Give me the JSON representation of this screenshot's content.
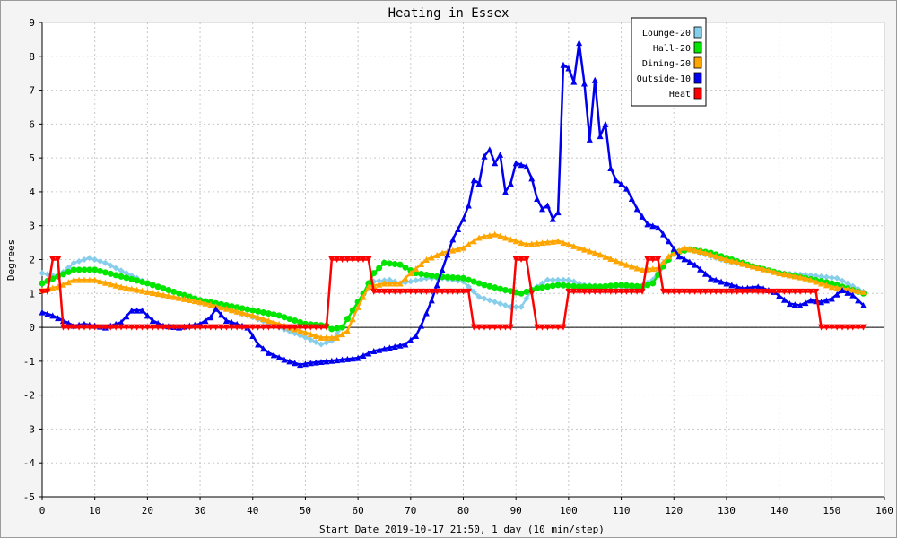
{
  "chart_data": {
    "type": "line",
    "title": "Heating in Essex",
    "xlabel": "Start Date 2019-10-17 21:50, 1 day (10 min/step)",
    "ylabel": "Degrees",
    "xlim": [
      0,
      160
    ],
    "ylim": [
      -5,
      9
    ],
    "xticks": [
      0,
      10,
      20,
      30,
      40,
      50,
      60,
      70,
      80,
      90,
      100,
      110,
      120,
      130,
      140,
      150,
      160
    ],
    "yticks": [
      -5,
      -4,
      -3,
      -2,
      -1,
      0,
      1,
      2,
      3,
      4,
      5,
      6,
      7,
      8,
      9
    ],
    "grid": true,
    "legend_position": "top-right",
    "series": [
      {
        "name": "Lounge-20",
        "color": "#87ceeb",
        "marker": "diamond",
        "points": [
          [
            0,
            1.6
          ],
          [
            3,
            1.5
          ],
          [
            6,
            1.9
          ],
          [
            9,
            2.05
          ],
          [
            12,
            1.9
          ],
          [
            16,
            1.6
          ],
          [
            20,
            1.3
          ],
          [
            25,
            1.05
          ],
          [
            30,
            0.8
          ],
          [
            35,
            0.55
          ],
          [
            40,
            0.3
          ],
          [
            45,
            0
          ],
          [
            50,
            -0.3
          ],
          [
            53,
            -0.5
          ],
          [
            55,
            -0.4
          ],
          [
            57,
            0
          ],
          [
            59,
            0.5
          ],
          [
            61,
            1.0
          ],
          [
            63,
            1.35
          ],
          [
            66,
            1.4
          ],
          [
            68,
            1.3
          ],
          [
            70,
            1.35
          ],
          [
            73,
            1.45
          ],
          [
            76,
            1.45
          ],
          [
            80,
            1.35
          ],
          [
            83,
            0.9
          ],
          [
            86,
            0.75
          ],
          [
            89,
            0.6
          ],
          [
            91,
            0.6
          ],
          [
            93,
            1.1
          ],
          [
            96,
            1.4
          ],
          [
            100,
            1.4
          ],
          [
            103,
            1.25
          ],
          [
            107,
            1.2
          ],
          [
            110,
            1.2
          ],
          [
            113,
            1.15
          ],
          [
            116,
            1.4
          ],
          [
            118,
            1.9
          ],
          [
            120,
            2.2
          ],
          [
            123,
            2.3
          ],
          [
            126,
            2.15
          ],
          [
            130,
            1.95
          ],
          [
            135,
            1.8
          ],
          [
            140,
            1.6
          ],
          [
            145,
            1.55
          ],
          [
            148,
            1.5
          ],
          [
            151,
            1.45
          ],
          [
            153,
            1.3
          ],
          [
            156,
            1.05
          ]
        ]
      },
      {
        "name": "Hall-20",
        "color": "#00e600",
        "marker": "circle",
        "points": [
          [
            0,
            1.3
          ],
          [
            3,
            1.5
          ],
          [
            6,
            1.7
          ],
          [
            10,
            1.7
          ],
          [
            15,
            1.5
          ],
          [
            20,
            1.3
          ],
          [
            25,
            1.05
          ],
          [
            30,
            0.8
          ],
          [
            35,
            0.65
          ],
          [
            40,
            0.5
          ],
          [
            45,
            0.35
          ],
          [
            50,
            0.1
          ],
          [
            54,
            0.05
          ],
          [
            55,
            -0.05
          ],
          [
            57,
            0
          ],
          [
            59,
            0.5
          ],
          [
            61,
            1.0
          ],
          [
            63,
            1.6
          ],
          [
            65,
            1.9
          ],
          [
            68,
            1.85
          ],
          [
            71,
            1.6
          ],
          [
            75,
            1.5
          ],
          [
            80,
            1.45
          ],
          [
            84,
            1.25
          ],
          [
            88,
            1.1
          ],
          [
            91,
            1.0
          ],
          [
            94,
            1.15
          ],
          [
            98,
            1.25
          ],
          [
            102,
            1.2
          ],
          [
            106,
            1.2
          ],
          [
            110,
            1.25
          ],
          [
            114,
            1.2
          ],
          [
            116,
            1.3
          ],
          [
            118,
            1.8
          ],
          [
            120,
            2.2
          ],
          [
            123,
            2.3
          ],
          [
            127,
            2.2
          ],
          [
            131,
            2.0
          ],
          [
            135,
            1.8
          ],
          [
            140,
            1.6
          ],
          [
            145,
            1.45
          ],
          [
            150,
            1.3
          ],
          [
            156,
            1.0
          ]
        ]
      },
      {
        "name": "Dining-20",
        "color": "#ffa500",
        "marker": "triangle",
        "points": [
          [
            0,
            1.1
          ],
          [
            3,
            1.2
          ],
          [
            6,
            1.4
          ],
          [
            10,
            1.4
          ],
          [
            15,
            1.2
          ],
          [
            20,
            1.05
          ],
          [
            25,
            0.9
          ],
          [
            30,
            0.75
          ],
          [
            35,
            0.55
          ],
          [
            40,
            0.35
          ],
          [
            45,
            0.1
          ],
          [
            50,
            -0.15
          ],
          [
            53,
            -0.3
          ],
          [
            56,
            -0.3
          ],
          [
            58,
            -0.1
          ],
          [
            60,
            0.6
          ],
          [
            62,
            1.2
          ],
          [
            65,
            1.3
          ],
          [
            68,
            1.3
          ],
          [
            70,
            1.6
          ],
          [
            73,
            2.0
          ],
          [
            76,
            2.2
          ],
          [
            80,
            2.35
          ],
          [
            83,
            2.65
          ],
          [
            86,
            2.75
          ],
          [
            89,
            2.6
          ],
          [
            92,
            2.45
          ],
          [
            95,
            2.5
          ],
          [
            98,
            2.55
          ],
          [
            102,
            2.35
          ],
          [
            106,
            2.15
          ],
          [
            110,
            1.9
          ],
          [
            114,
            1.7
          ],
          [
            117,
            1.75
          ],
          [
            119,
            2.1
          ],
          [
            122,
            2.35
          ],
          [
            126,
            2.2
          ],
          [
            130,
            2.0
          ],
          [
            135,
            1.8
          ],
          [
            140,
            1.6
          ],
          [
            145,
            1.45
          ],
          [
            150,
            1.2
          ],
          [
            156,
            1.05
          ]
        ]
      },
      {
        "name": "Outside-10",
        "color": "#0000ee",
        "marker": "triangle",
        "points": [
          [
            0,
            0.45
          ],
          [
            2,
            0.35
          ],
          [
            4,
            0.2
          ],
          [
            6,
            0.05
          ],
          [
            8,
            0.1
          ],
          [
            10,
            0.05
          ],
          [
            12,
            0
          ],
          [
            15,
            0.15
          ],
          [
            17,
            0.5
          ],
          [
            19,
            0.5
          ],
          [
            21,
            0.2
          ],
          [
            23,
            0.05
          ],
          [
            26,
            0
          ],
          [
            28,
            0.05
          ],
          [
            30,
            0.1
          ],
          [
            32,
            0.3
          ],
          [
            33,
            0.55
          ],
          [
            35,
            0.2
          ],
          [
            37,
            0.1
          ],
          [
            39,
            0
          ],
          [
            41,
            -0.5
          ],
          [
            43,
            -0.75
          ],
          [
            46,
            -0.95
          ],
          [
            49,
            -1.1
          ],
          [
            51,
            -1.05
          ],
          [
            54,
            -1.0
          ],
          [
            57,
            -0.95
          ],
          [
            60,
            -0.9
          ],
          [
            63,
            -0.7
          ],
          [
            66,
            -0.6
          ],
          [
            69,
            -0.5
          ],
          [
            71,
            -0.25
          ],
          [
            72,
            0.05
          ],
          [
            74,
            0.8
          ],
          [
            76,
            1.7
          ],
          [
            78,
            2.6
          ],
          [
            80,
            3.2
          ],
          [
            81,
            3.6
          ],
          [
            82,
            4.35
          ],
          [
            83,
            4.25
          ],
          [
            84,
            5.05
          ],
          [
            85,
            5.25
          ],
          [
            86,
            4.85
          ],
          [
            87,
            5.1
          ],
          [
            88,
            4.0
          ],
          [
            89,
            4.25
          ],
          [
            90,
            4.85
          ],
          [
            92,
            4.75
          ],
          [
            93,
            4.4
          ],
          [
            94,
            3.8
          ],
          [
            95,
            3.5
          ],
          [
            96,
            3.6
          ],
          [
            97,
            3.2
          ],
          [
            98,
            3.4
          ],
          [
            99,
            7.75
          ],
          [
            100,
            7.65
          ],
          [
            101,
            7.25
          ],
          [
            102,
            8.4
          ],
          [
            103,
            7.2
          ],
          [
            104,
            5.55
          ],
          [
            105,
            7.3
          ],
          [
            106,
            5.65
          ],
          [
            107,
            6.0
          ],
          [
            108,
            4.7
          ],
          [
            109,
            4.35
          ],
          [
            111,
            4.1
          ],
          [
            113,
            3.5
          ],
          [
            115,
            3.05
          ],
          [
            117,
            2.95
          ],
          [
            119,
            2.55
          ],
          [
            121,
            2.1
          ],
          [
            124,
            1.85
          ],
          [
            127,
            1.45
          ],
          [
            130,
            1.3
          ],
          [
            133,
            1.15
          ],
          [
            136,
            1.2
          ],
          [
            139,
            1.05
          ],
          [
            142,
            0.7
          ],
          [
            144,
            0.65
          ],
          [
            146,
            0.8
          ],
          [
            148,
            0.75
          ],
          [
            150,
            0.85
          ],
          [
            152,
            1.1
          ],
          [
            154,
            0.95
          ],
          [
            156,
            0.65
          ]
        ]
      },
      {
        "name": "Heat",
        "color": "#ff0000",
        "marker": "triangle-down",
        "points": [
          [
            0,
            1.05
          ],
          [
            1,
            1.05
          ],
          [
            2,
            2.0
          ],
          [
            3,
            2.0
          ],
          [
            4,
            0
          ],
          [
            52,
            0
          ],
          [
            54,
            0
          ],
          [
            55,
            2.0
          ],
          [
            61,
            2.0
          ],
          [
            62,
            2.0
          ],
          [
            63,
            1.05
          ],
          [
            80,
            1.05
          ],
          [
            81,
            1.05
          ],
          [
            82,
            0
          ],
          [
            89,
            0
          ],
          [
            90,
            2.0
          ],
          [
            92,
            2.0
          ],
          [
            94,
            0
          ],
          [
            99,
            0
          ],
          [
            100,
            1.05
          ],
          [
            114,
            1.05
          ],
          [
            115,
            2.0
          ],
          [
            117,
            2.0
          ],
          [
            118,
            1.05
          ],
          [
            147,
            1.05
          ],
          [
            148,
            0
          ],
          [
            156,
            0
          ]
        ]
      }
    ]
  }
}
